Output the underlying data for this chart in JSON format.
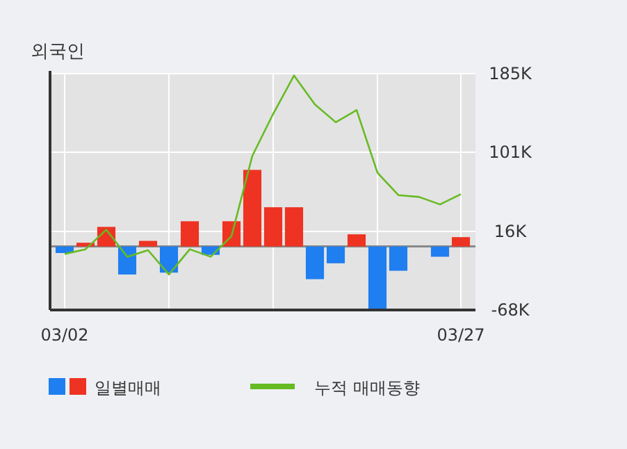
{
  "chart_data": {
    "type": "bar",
    "title": "외국인",
    "categories": [
      "03/02",
      null,
      null,
      null,
      null,
      null,
      null,
      null,
      null,
      null,
      null,
      null,
      null,
      null,
      null,
      null,
      null,
      null,
      null,
      "03/27"
    ],
    "series": [
      {
        "name": "일별매매",
        "values": [
          -7,
          4,
          21,
          -30,
          6,
          -28,
          27,
          -9,
          27,
          82,
          42,
          42,
          -35,
          -18,
          13,
          -67,
          -26,
          0,
          -11,
          10
        ],
        "colors": [
          "#1f7ef0",
          "#ee3322",
          "#ee3322",
          "#1f7ef0",
          "#ee3322",
          "#1f7ef0",
          "#ee3322",
          "#1f7ef0",
          "#ee3322",
          "#ee3322",
          "#ee3322",
          "#ee3322",
          "#1f7ef0",
          "#1f7ef0",
          "#ee3322",
          "#1f7ef0",
          "#1f7ef0",
          "#ee3322",
          "#1f7ef0",
          "#ee3322"
        ]
      },
      {
        "name": "누적 매매동향",
        "type": "line",
        "color": "#66bb22",
        "values": [
          -8,
          -3,
          18,
          -11,
          -4,
          -30,
          -3,
          -11,
          11,
          97,
          142,
          183,
          152,
          133,
          146,
          79,
          55,
          53,
          45,
          56
        ]
      }
    ],
    "ylim": [
      -68,
      185
    ],
    "yticks": [
      {
        "value": 185,
        "label": "185K"
      },
      {
        "value": 101,
        "label": "101K"
      },
      {
        "value": 16,
        "label": "16K"
      },
      {
        "value": -68,
        "label": "-68K"
      }
    ],
    "grid": true,
    "legend": "bottom",
    "marker": "none",
    "line_style": "solid"
  }
}
